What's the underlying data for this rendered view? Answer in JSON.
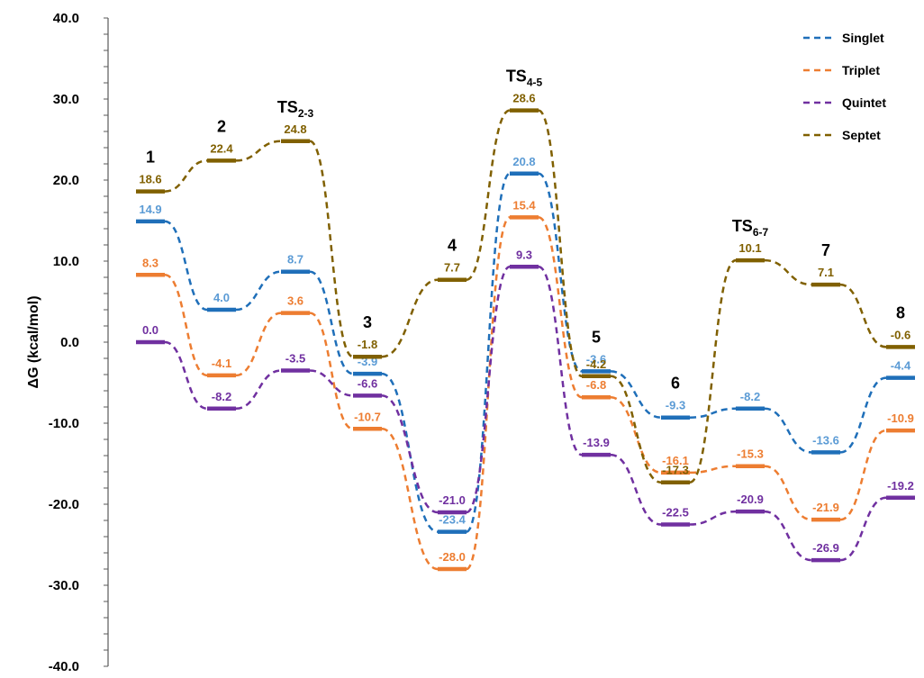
{
  "chart_data": {
    "type": "line",
    "ylabel": "ΔG (kcal/mol)",
    "ylim": [
      -40,
      40
    ],
    "yticks": [
      "40.0",
      "30.0",
      "20.0",
      "10.0",
      "0.0",
      "-10.0",
      "-20.0",
      "-30.0",
      "-40.0"
    ],
    "grid": false,
    "legend_position": "top-right",
    "stages": [
      {
        "main": "1",
        "sub": ""
      },
      {
        "main": "2",
        "sub": ""
      },
      {
        "main": "TS",
        "sub": "2-3"
      },
      {
        "main": "3",
        "sub": ""
      },
      {
        "main": "4",
        "sub": ""
      },
      {
        "main": "TS",
        "sub": "4-5"
      },
      {
        "main": "5",
        "sub": ""
      },
      {
        "main": "6",
        "sub": ""
      },
      {
        "main": "TS",
        "sub": "6-7"
      },
      {
        "main": "7",
        "sub": ""
      },
      {
        "main": "8",
        "sub": ""
      }
    ],
    "series": [
      {
        "name": "Singlet",
        "color": "#1f6fb9",
        "label_color": "#5b9bd5",
        "values": [
          14.9,
          4.0,
          8.7,
          -3.9,
          -23.4,
          20.8,
          -3.6,
          -9.3,
          -8.2,
          -13.6,
          -4.4
        ],
        "labels": [
          "14.9",
          "4.0",
          "8.7",
          "-3.9",
          "-23.4",
          "20.8",
          "-3.6",
          "-9.3",
          "-8.2",
          "-13.6",
          "-4.4"
        ]
      },
      {
        "name": "Triplet",
        "color": "#ed7d31",
        "label_color": "#ed7d31",
        "values": [
          8.3,
          -4.1,
          3.6,
          -10.7,
          -28.0,
          15.4,
          -6.8,
          -16.1,
          -15.3,
          -21.9,
          -10.9
        ],
        "labels": [
          "8.3",
          "-4.1",
          "3.6",
          "-10.7",
          "-28.0",
          "15.4",
          "-6.8",
          "-16.1",
          "-15.3",
          "-21.9",
          "-10.9"
        ]
      },
      {
        "name": "Quintet",
        "color": "#7030a0",
        "label_color": "#7030a0",
        "values": [
          0.0,
          -8.2,
          -3.5,
          -6.6,
          -21.0,
          9.3,
          -13.9,
          -22.5,
          -20.9,
          -26.9,
          -19.2
        ],
        "labels": [
          "0.0",
          "-8.2",
          "-3.5",
          "-6.6",
          "-21.0",
          "9.3",
          "-13.9",
          "-22.5",
          "-20.9",
          "-26.9",
          "-19.2"
        ]
      },
      {
        "name": "Septet",
        "color": "#806000",
        "label_color": "#806000",
        "values": [
          18.6,
          22.4,
          24.8,
          -1.8,
          7.7,
          28.6,
          -4.2,
          -17.3,
          10.1,
          7.1,
          -0.6
        ],
        "labels": [
          "18.6",
          "22.4",
          "24.8",
          "-1.8",
          "7.7",
          "28.6",
          "-4.2",
          "-17.3",
          "10.1",
          "7.1",
          "-0.6"
        ]
      }
    ]
  }
}
